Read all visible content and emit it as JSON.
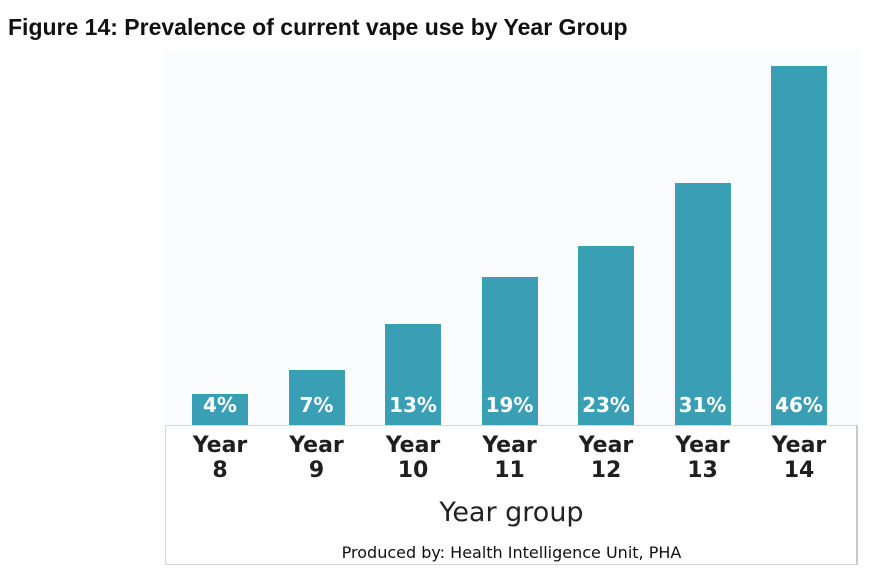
{
  "page": {
    "title": "Figure 14: Prevalence of current vape use by Year Group",
    "credit": "Produced by: Health Intelligence Unit, PHA"
  },
  "colors": {
    "bar": "#3a9fb4",
    "bar_label": "#ffffff",
    "text": "#1f1f1f"
  },
  "chart_data": {
    "type": "bar",
    "title": "",
    "xlabel": "Year group",
    "ylabel": "",
    "ylim": [
      0,
      46
    ],
    "grid": false,
    "legend": "none",
    "categories": [
      [
        "Year",
        "8"
      ],
      [
        "Year",
        "9"
      ],
      [
        "Year",
        "10"
      ],
      [
        "Year",
        "11"
      ],
      [
        "Year",
        "12"
      ],
      [
        "Year",
        "13"
      ],
      [
        "Year",
        "14"
      ]
    ],
    "values": [
      4,
      7,
      13,
      19,
      23,
      31,
      46
    ],
    "data_labels": [
      "4%",
      "7%",
      "13%",
      "19%",
      "23%",
      "31%",
      "46%"
    ]
  }
}
